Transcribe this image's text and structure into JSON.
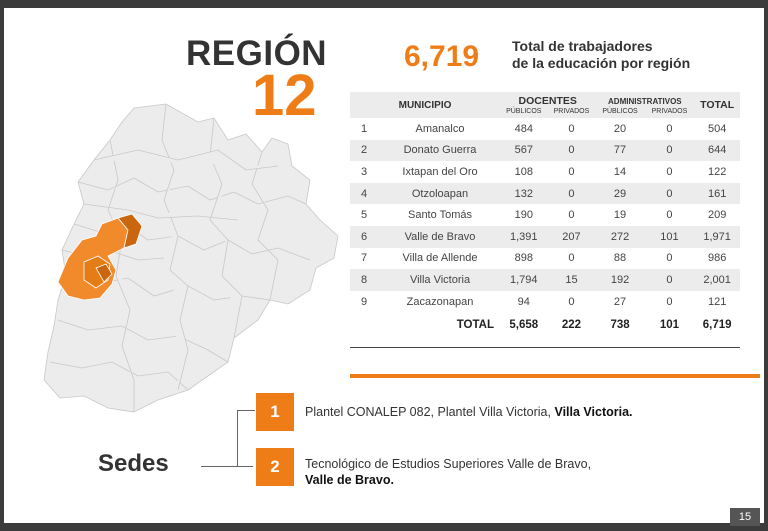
{
  "header": {
    "region_word": "REGIÓN",
    "region_number": "12",
    "total_workers": "6,719",
    "total_desc_line1": "Total de trabajadores",
    "total_desc_line2": "de la educación por región"
  },
  "table": {
    "col_municipio": "MUNICIPIO",
    "col_docentes": "DOCENTES",
    "col_administrativos": "ADMINISTRATIVOS",
    "col_total": "TOTAL",
    "sub_publicos": "PÚBLICOS",
    "sub_privados": "PRIVADOS",
    "rows": [
      {
        "idx": "1",
        "name": "Amanalco",
        "doc_pub": "484",
        "doc_priv": "0",
        "adm_pub": "20",
        "adm_priv": "0",
        "total": "504"
      },
      {
        "idx": "2",
        "name": "Donato Guerra",
        "doc_pub": "567",
        "doc_priv": "0",
        "adm_pub": "77",
        "adm_priv": "0",
        "total": "644"
      },
      {
        "idx": "3",
        "name": "Ixtapan del Oro",
        "doc_pub": "108",
        "doc_priv": "0",
        "adm_pub": "14",
        "adm_priv": "0",
        "total": "122"
      },
      {
        "idx": "4",
        "name": "Otzoloapan",
        "doc_pub": "132",
        "doc_priv": "0",
        "adm_pub": "29",
        "adm_priv": "0",
        "total": "161"
      },
      {
        "idx": "5",
        "name": "Santo Tomás",
        "doc_pub": "190",
        "doc_priv": "0",
        "adm_pub": "19",
        "adm_priv": "0",
        "total": "209"
      },
      {
        "idx": "6",
        "name": "Valle de Bravo",
        "doc_pub": "1,391",
        "doc_priv": "207",
        "adm_pub": "272",
        "adm_priv": "101",
        "total": "1,971"
      },
      {
        "idx": "7",
        "name": "Villa de Allende",
        "doc_pub": "898",
        "doc_priv": "0",
        "adm_pub": "88",
        "adm_priv": "0",
        "total": "986"
      },
      {
        "idx": "8",
        "name": "Villa Victoria",
        "doc_pub": "1,794",
        "doc_priv": "15",
        "adm_pub": "192",
        "adm_priv": "0",
        "total": "2,001"
      },
      {
        "idx": "9",
        "name": "Zacazonapan",
        "doc_pub": "94",
        "doc_priv": "0",
        "adm_pub": "27",
        "adm_priv": "0",
        "total": "121"
      }
    ],
    "totals": {
      "label": "TOTAL",
      "doc_pub": "5,658",
      "doc_priv": "222",
      "adm_pub": "738",
      "adm_priv": "101",
      "total": "6,719"
    }
  },
  "sedes": {
    "title": "Sedes",
    "items": [
      {
        "num": "1",
        "text": "Plantel CONALEP 082, Plantel Villa Victoria, ",
        "bold": "Villa Victoria."
      },
      {
        "num": "2",
        "text": "Tecnológico de Estudios Superiores Valle de Bravo,",
        "bold": "Valle de Bravo."
      }
    ]
  },
  "page_number": "15",
  "colors": {
    "accent": "#ef7d17",
    "accent_dark": "#c9660f",
    "map_gray": "#e8e8e8"
  }
}
